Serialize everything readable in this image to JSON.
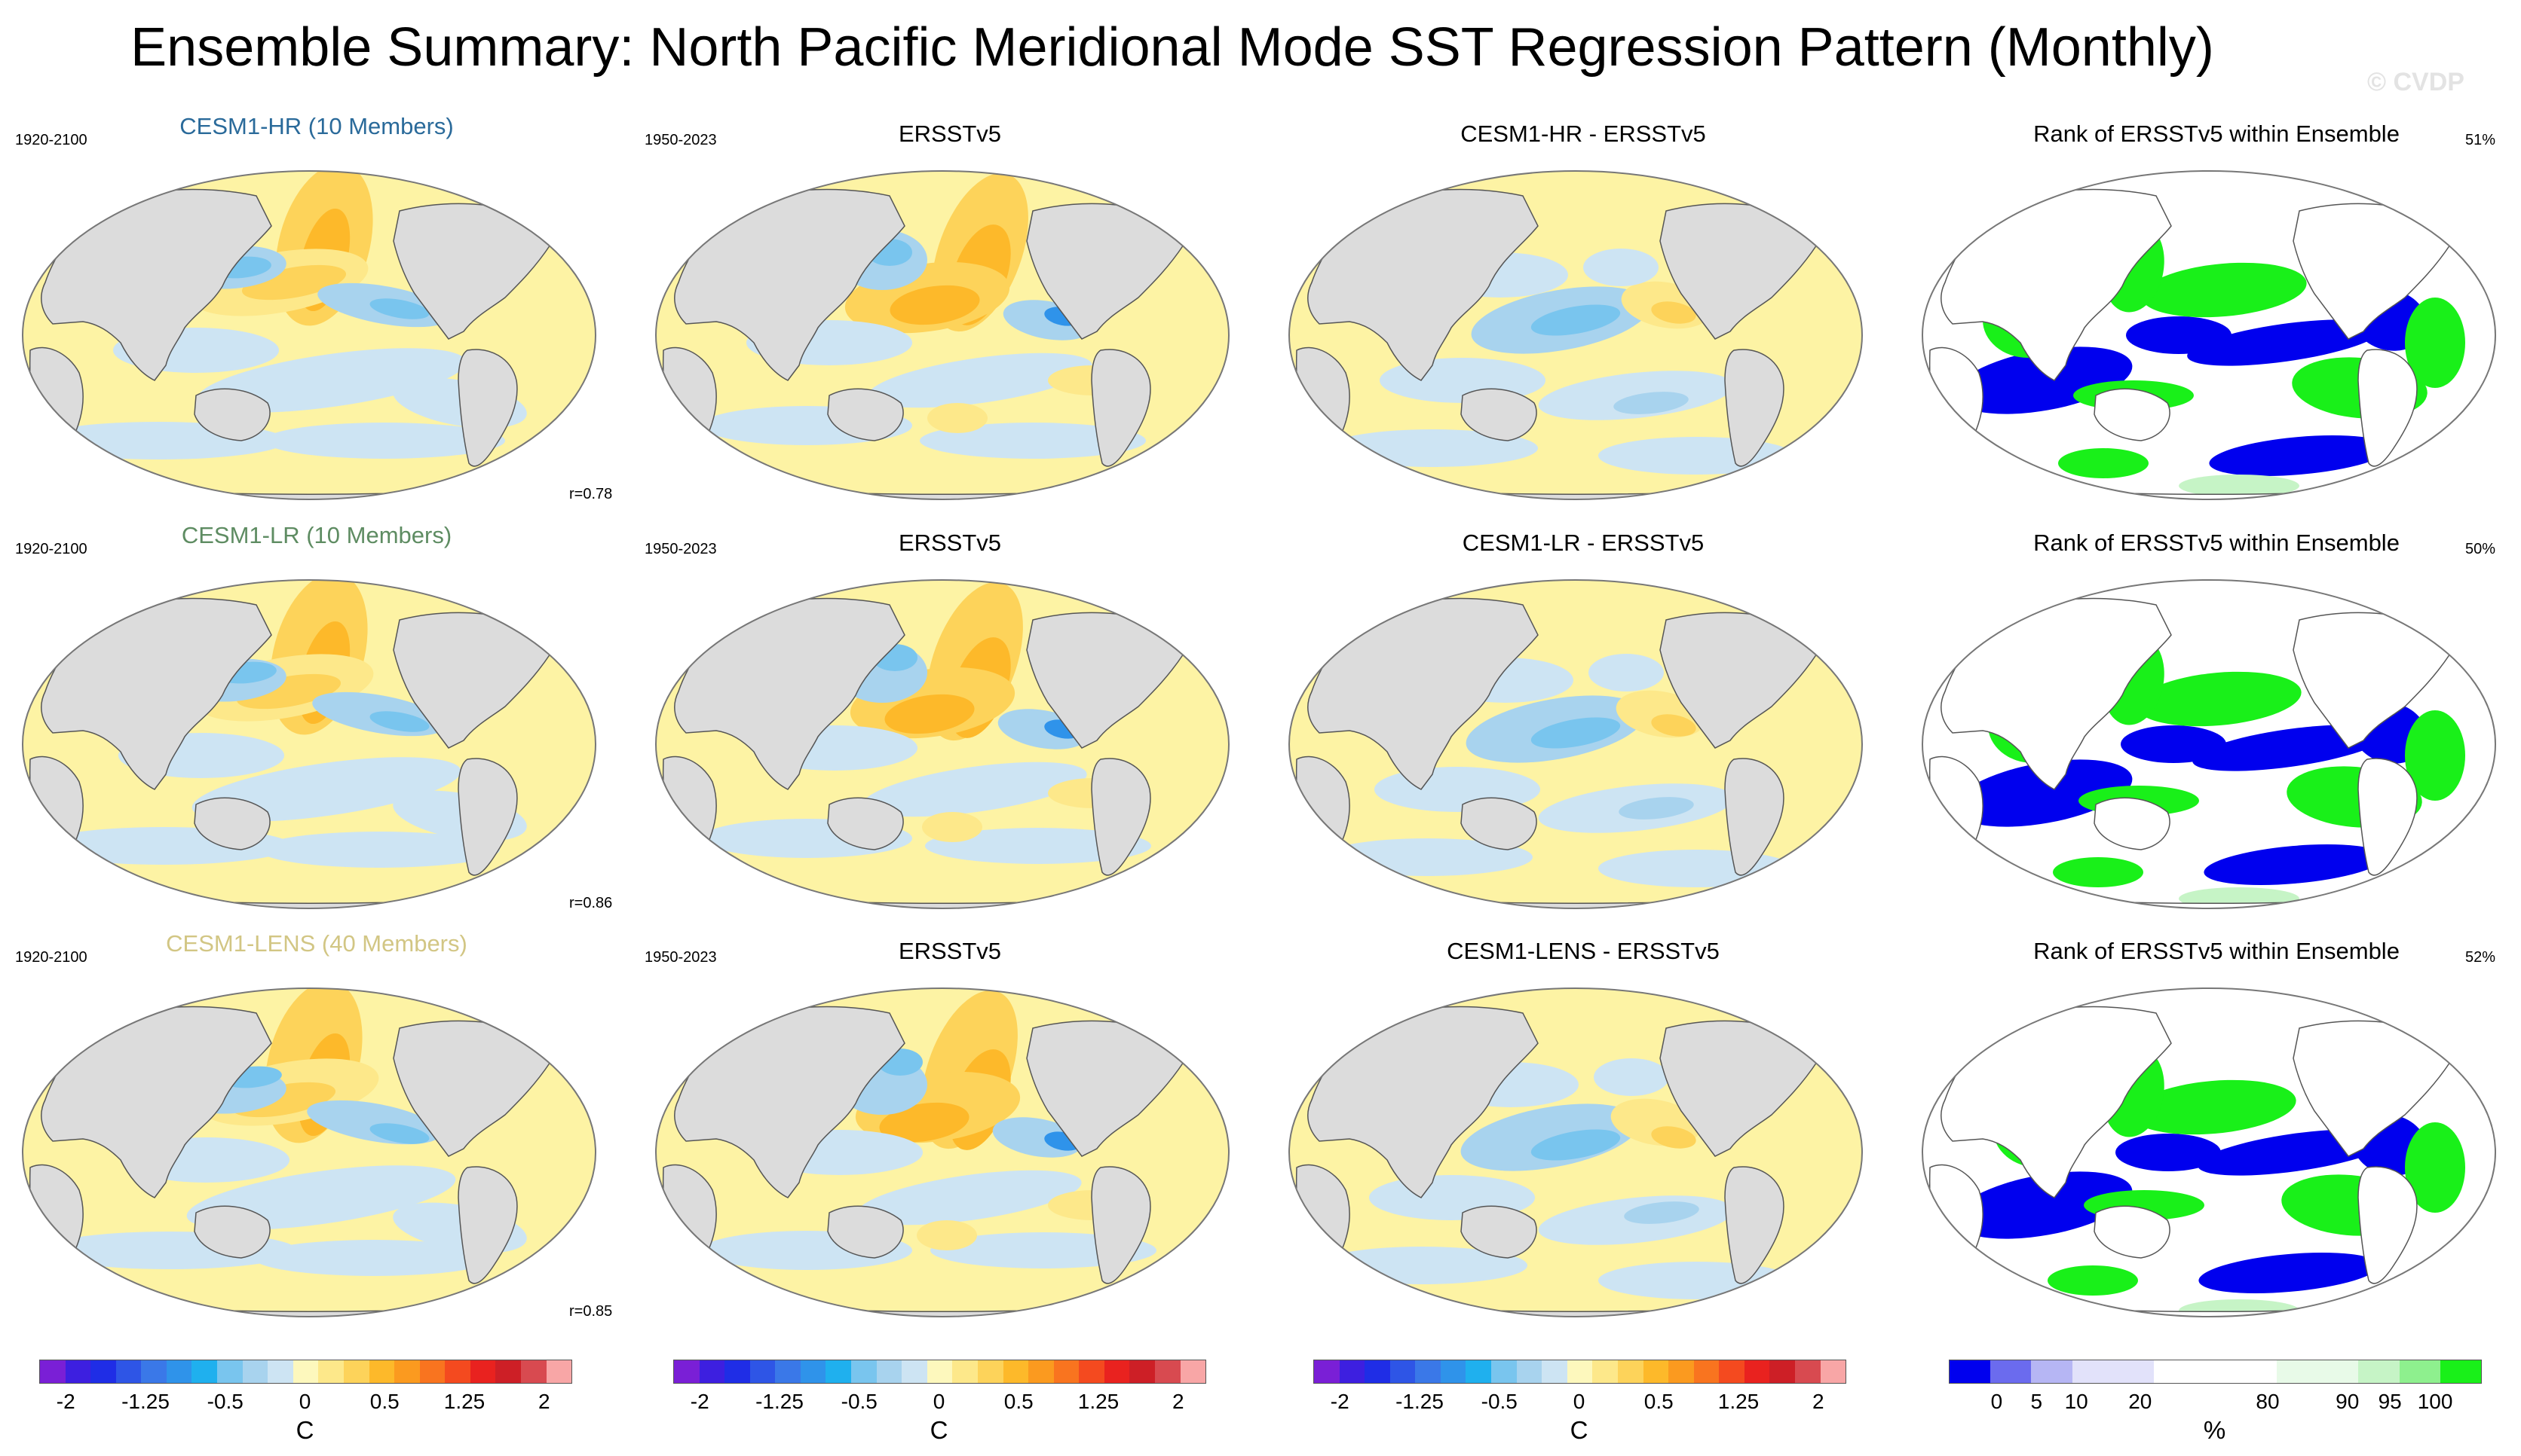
{
  "title": "Ensemble Summary: North Pacific Meridional Mode SST Regression Pattern (Monthly)",
  "watermark": "© CVDP",
  "colors": {
    "hr": "#2a6a9a",
    "lr": "#5e8c62",
    "lens": "#d2c684",
    "land": "#dcdcdc",
    "ocean_base": "#fdf3a4"
  },
  "rows": [
    {
      "model_title": "CESM1-HR (10 Members)",
      "model_period": "1920-2100",
      "corr": "r=0.78",
      "obs_title": "ERSSTv5",
      "obs_period": "1950-2023",
      "diff_title": "CESM1-HR - ERSSTv5",
      "rank_title": "Rank of ERSSTv5 within Ensemble",
      "rank_pct": "51%"
    },
    {
      "model_title": "CESM1-LR (10 Members)",
      "model_period": "1920-2100",
      "corr": "r=0.86",
      "obs_title": "ERSSTv5",
      "obs_period": "1950-2023",
      "diff_title": "CESM1-LR - ERSSTv5",
      "rank_title": "Rank of ERSSTv5 within Ensemble",
      "rank_pct": "50%"
    },
    {
      "model_title": "CESM1-LENS (40 Members)",
      "model_period": "1920-2100",
      "corr": "r=0.85",
      "obs_title": "ERSSTv5",
      "obs_period": "1950-2023",
      "diff_title": "CESM1-LENS - ERSSTv5",
      "rank_title": "Rank of ERSSTv5 within Ensemble",
      "rank_pct": "52%"
    }
  ],
  "colorbars": {
    "sst": {
      "unit": "C",
      "ticks": [
        "-2",
        "-1.25",
        "-0.5",
        "0",
        "0.5",
        "1.25",
        "2"
      ],
      "colors": [
        "#7a1fd6",
        "#3d1fe0",
        "#1f2de6",
        "#2e55e6",
        "#3a78e8",
        "#2f93ea",
        "#1fb0ee",
        "#79c5ee",
        "#a8d3ee",
        "#cde4f3",
        "#fdf8bd",
        "#fde88a",
        "#fdd35a",
        "#fdb92a",
        "#fb9a1f",
        "#f9741f",
        "#f44a1f",
        "#e9221f",
        "#cd1f26",
        "#d84a50",
        "#f8a6a6"
      ]
    },
    "rank": {
      "unit": "%",
      "ticks": [
        "0",
        "5",
        "10",
        "20",
        "80",
        "90",
        "95",
        "100"
      ],
      "colors": [
        "#0000ee",
        "#6b6bee",
        "#b6b6f4",
        "#e2e2fa",
        "#e2e2fa",
        "#ffffff",
        "#ffffff",
        "#ffffff",
        "#e8fae8",
        "#e8fae8",
        "#c6f4c6",
        "#8ef08e",
        "#19f019"
      ]
    }
  },
  "chart_data": {
    "type": "heatmap",
    "projection": "Robinson (Pacific-centered)",
    "panels_per_row": [
      "Ensemble mean regression",
      "ERSSTv5 observed regression",
      "Model minus observations",
      "Rank of ERSSTv5 within ensemble"
    ],
    "sst_levels": [
      -2,
      -1.75,
      -1.5,
      -1.25,
      -1,
      -0.75,
      -0.5,
      -0.25,
      -0.1,
      0,
      0.1,
      0.25,
      0.5,
      0.75,
      1,
      1.25,
      1.5,
      1.75,
      2
    ],
    "rank_levels": [
      0,
      5,
      10,
      20,
      80,
      90,
      95,
      100
    ],
    "pattern_correlations": [
      0.78,
      0.86,
      0.85
    ],
    "rank_percent": [
      51,
      50,
      52
    ]
  }
}
